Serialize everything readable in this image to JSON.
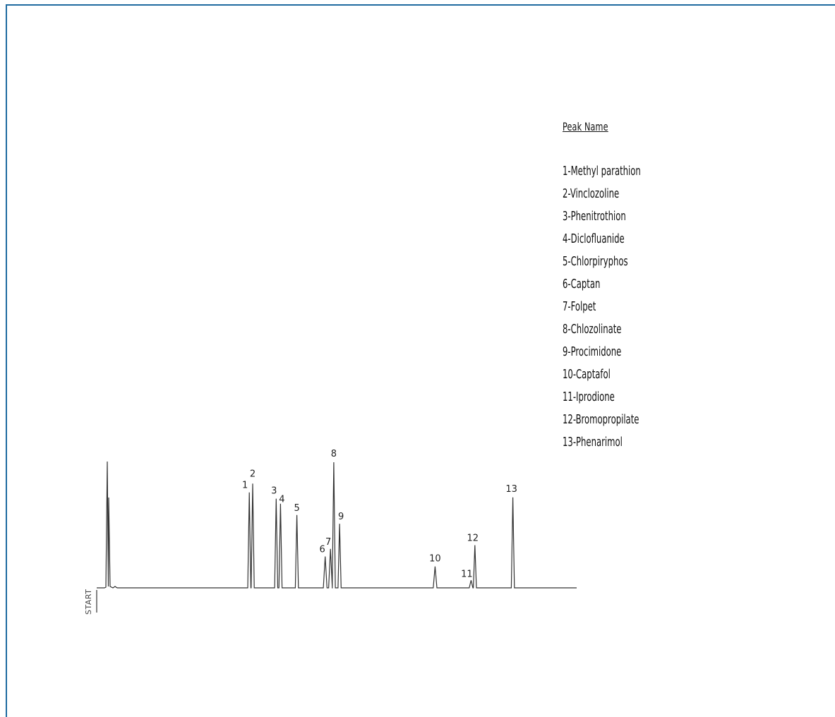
{
  "legend": {
    "title": "Peak Name",
    "items": [
      "1-Methyl parathion",
      "2-Vinclozoline",
      "3-Phenitrothion",
      "4-Diclofluanide",
      "5-Chlorpiryphos",
      "6-Captan",
      "7-Folpet",
      "8-Chlozolinate",
      "9-Procimidone",
      "10-Captafol",
      "11-Iprodione",
      "12-Bromopropilate",
      "13-Phenarimol"
    ]
  },
  "chart_data": {
    "type": "line",
    "title": "",
    "xlabel": "",
    "ylabel": "",
    "start_label": "START",
    "axes_visible": false,
    "grid": false,
    "legend_placement": "top-right",
    "line_color": "#333333",
    "peaks": [
      {
        "label": "1",
        "x": 0.318,
        "height": 0.76
      },
      {
        "label": "2",
        "x": 0.325,
        "height": 0.83
      },
      {
        "label": "3",
        "x": 0.374,
        "height": 0.71
      },
      {
        "label": "4",
        "x": 0.383,
        "height": 0.67
      },
      {
        "label": "5",
        "x": 0.417,
        "height": 0.58
      },
      {
        "label": "6",
        "x": 0.476,
        "height": 0.25
      },
      {
        "label": "7",
        "x": 0.487,
        "height": 0.31
      },
      {
        "label": "8",
        "x": 0.494,
        "height": 1.0
      },
      {
        "label": "9",
        "x": 0.506,
        "height": 0.51
      },
      {
        "label": "10",
        "x": 0.705,
        "height": 0.17
      },
      {
        "label": "11",
        "x": 0.78,
        "height": 0.06
      },
      {
        "label": "12",
        "x": 0.788,
        "height": 0.34
      },
      {
        "label": "13",
        "x": 0.867,
        "height": 0.72
      }
    ]
  }
}
